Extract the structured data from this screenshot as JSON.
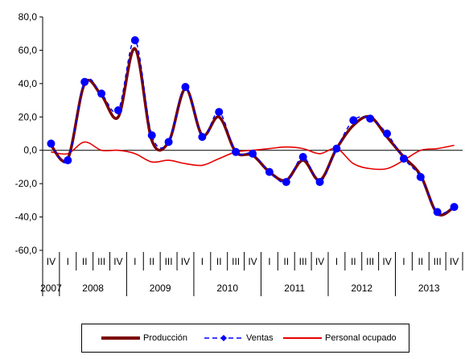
{
  "chart_data": {
    "type": "line",
    "title": "",
    "xlabel": "",
    "ylabel": "",
    "ylim": [
      -60,
      80
    ],
    "y_ticks": [
      "80,0",
      "60,0",
      "40,0",
      "20,0",
      "0,0",
      "-20,0",
      "-40,0",
      "-60,0"
    ],
    "y_tick_values": [
      80,
      60,
      40,
      20,
      0,
      -20,
      -40,
      -60
    ],
    "grid": false,
    "legend_position": "bottom",
    "quarter_labels": [
      "IV",
      "I",
      "II",
      "III",
      "IV",
      "I",
      "II",
      "III",
      "IV",
      "I",
      "II",
      "III",
      "IV",
      "I",
      "II",
      "III",
      "IV",
      "I",
      "II",
      "III",
      "IV",
      "I",
      "II",
      "III",
      "IV"
    ],
    "year_labels": [
      "2007",
      "2008",
      "2009",
      "2010",
      "2011",
      "2012",
      "2013"
    ],
    "year_spans": [
      [
        0,
        0
      ],
      [
        1,
        4
      ],
      [
        5,
        8
      ],
      [
        9,
        12
      ],
      [
        13,
        16
      ],
      [
        17,
        20
      ],
      [
        21,
        24
      ]
    ],
    "series": [
      {
        "name": "Producción",
        "color": "#7a0000",
        "style": "thick-solid",
        "values": [
          3,
          -5,
          40,
          33,
          20,
          61,
          6,
          5,
          37,
          9,
          20,
          -1,
          -3,
          -13,
          -18,
          -6,
          -18,
          1,
          15,
          20,
          8,
          -4,
          -15,
          -38,
          -34
        ]
      },
      {
        "name": "Ventas",
        "color": "#0000ff",
        "style": "dashed-markers",
        "values": [
          4,
          -6,
          41,
          34,
          24,
          66,
          9,
          5,
          38,
          8,
          23,
          -1,
          -2,
          -13,
          -19,
          -4,
          -19,
          1,
          18,
          19,
          10,
          -5,
          -16,
          -37,
          -34
        ]
      },
      {
        "name": "Personal ocupado",
        "color": "#e60000",
        "style": "solid",
        "values": [
          -1,
          -2,
          5,
          0,
          0,
          -2,
          -7,
          -6,
          -8,
          -9,
          -5,
          -1,
          0,
          1,
          2,
          1,
          -2,
          1,
          -8,
          -11,
          -11,
          -6,
          0,
          1,
          3
        ]
      }
    ]
  },
  "legend": [
    {
      "label": "Producción"
    },
    {
      "label": "Ventas"
    },
    {
      "label": "Personal ocupado"
    }
  ]
}
